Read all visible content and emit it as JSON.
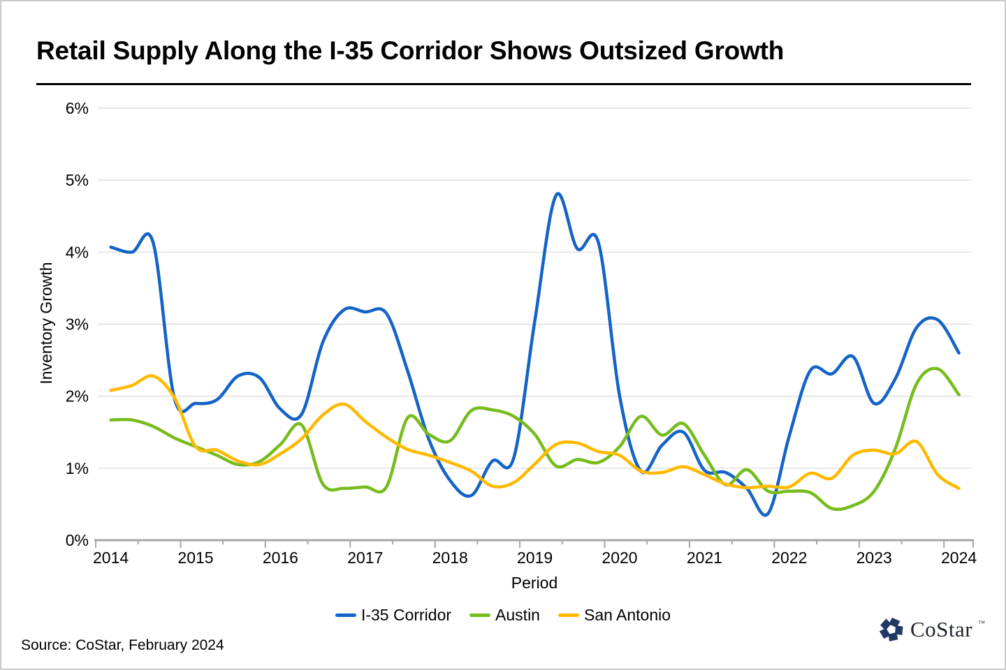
{
  "page": {
    "title": "Retail Supply Along the I-35 Corridor Shows Outsized Growth",
    "source_note": "Source: CoStar, February 2024",
    "logo": {
      "text": "CoStar",
      "tm": "™",
      "icon_color": "#1f3864"
    }
  },
  "chart_data": {
    "type": "line",
    "smooth": true,
    "title": "Retail Supply Along the I-35 Corridor Shows Outsized Growth",
    "xlabel": "Period",
    "ylabel": "Inventory Growth",
    "x_frequency": "quarterly",
    "x_start": "2014 Q1",
    "x_end": "2024 Q1",
    "x_tick_labels": [
      "2014",
      "2015",
      "2016",
      "2017",
      "2018",
      "2019",
      "2020",
      "2021",
      "2022",
      "2023",
      "2024"
    ],
    "y_tick_labels": [
      "0%",
      "1%",
      "2%",
      "3%",
      "4%",
      "5%",
      "6%"
    ],
    "ylim": [
      0,
      6
    ],
    "y_unit": "%",
    "gridlines": "horizontal",
    "grid_color": "#d9d9d9",
    "axis_color": "#a6a6a6",
    "legend_position": "bottom",
    "series": [
      {
        "name": "I-35 Corridor",
        "color": "#1463c7",
        "values": [
          4.07,
          4.0,
          4.13,
          1.97,
          1.9,
          1.95,
          2.28,
          2.26,
          1.82,
          1.75,
          2.75,
          3.2,
          3.17,
          3.15,
          2.35,
          1.4,
          0.83,
          0.62,
          1.1,
          1.14,
          3.05,
          4.79,
          4.05,
          4.13,
          2.0,
          0.96,
          1.32,
          1.5,
          0.97,
          0.94,
          0.72,
          0.37,
          1.45,
          2.36,
          2.31,
          2.55,
          1.9,
          2.24,
          2.95,
          3.06,
          2.6
        ]
      },
      {
        "name": "Austin",
        "color": "#76bc1c",
        "values": [
          1.67,
          1.67,
          1.58,
          1.42,
          1.3,
          1.18,
          1.05,
          1.09,
          1.33,
          1.6,
          0.78,
          0.72,
          0.74,
          0.74,
          1.7,
          1.47,
          1.38,
          1.8,
          1.81,
          1.72,
          1.47,
          1.03,
          1.12,
          1.08,
          1.3,
          1.72,
          1.46,
          1.62,
          1.18,
          0.77,
          0.98,
          0.68,
          0.68,
          0.66,
          0.44,
          0.48,
          0.68,
          1.27,
          2.17,
          2.38,
          2.02
        ]
      },
      {
        "name": "San Antonio",
        "color": "#ffb900",
        "values": [
          2.08,
          2.15,
          2.28,
          1.98,
          1.3,
          1.25,
          1.1,
          1.05,
          1.2,
          1.41,
          1.74,
          1.89,
          1.65,
          1.43,
          1.26,
          1.18,
          1.08,
          0.96,
          0.75,
          0.8,
          1.06,
          1.33,
          1.35,
          1.23,
          1.18,
          0.96,
          0.94,
          1.02,
          0.91,
          0.78,
          0.73,
          0.75,
          0.74,
          0.93,
          0.86,
          1.18,
          1.25,
          1.2,
          1.37,
          0.91,
          0.72
        ]
      }
    ]
  }
}
